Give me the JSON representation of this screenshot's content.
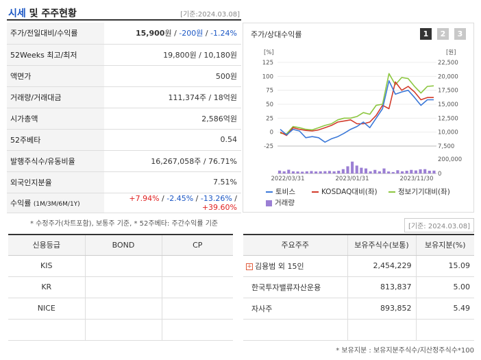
{
  "header": {
    "title_main": "시세",
    "title_rest": " 및 주주현황",
    "date": "[기준:2024.03.08]"
  },
  "quote": {
    "rows": [
      {
        "label": "주가/전일대비/수익률",
        "price": "15,900",
        "unit": "원",
        "sep": " / ",
        "change": "-200원",
        "sep2": " / ",
        "rate": "-1.24%"
      },
      {
        "label": "52Weeks 최고/최저",
        "value": "19,800원 / 10,180원"
      },
      {
        "label": "액면가",
        "value": "500원"
      },
      {
        "label": "거래량/거래대금",
        "value": "111,374주 / 18억원"
      },
      {
        "label": "시가총액",
        "value": "2,586억원"
      },
      {
        "label": "52주베타",
        "value": "0.54"
      },
      {
        "label": "발행주식수/유동비율",
        "value": "16,267,058주 / 76.71%"
      },
      {
        "label": "외국인지분율",
        "value": "7.51%"
      }
    ],
    "returns_label": "수익률",
    "returns_periods": "(1M/3M/6M/1Y)",
    "returns": [
      "+7.94%",
      "-2.45%",
      "-13.26%",
      "+39.60%"
    ]
  },
  "note1": "* 수정주가(차트포함), 보통주 기준, * 52주베타: 주간수익률 기준",
  "chart": {
    "title": "주가/상대수익률",
    "tabs": [
      "1",
      "2",
      "3"
    ],
    "left_unit": "[%]",
    "right_unit": "[원]",
    "legend": [
      "토비스",
      "KOSDAQ대비(좌)",
      "정보기기대비(좌)",
      "거래량"
    ]
  },
  "chart_data": {
    "type": "line",
    "x_ticks": [
      "2022/03/31",
      "2023/01/31",
      "2023/11/30"
    ],
    "y_left_ticks": [
      "125",
      "100",
      "75",
      "50",
      "25",
      "0",
      "-25"
    ],
    "y_right_ticks": [
      "22,500",
      "20,000",
      "17,500",
      "15,000",
      "12,500",
      "10,000",
      "7,500"
    ],
    "volume_ticks": [
      "200,000",
      "0"
    ],
    "ylim_left": [
      -25,
      125
    ],
    "ylim_right": [
      7500,
      22500
    ],
    "volume_max": 200000,
    "series": [
      {
        "name": "토비스",
        "color": "#3a78d8",
        "values": [
          5,
          -5,
          5,
          2,
          -10,
          -8,
          -10,
          -18,
          -12,
          -8,
          -2,
          5,
          10,
          18,
          8,
          25,
          42,
          92,
          68,
          72,
          75,
          62,
          48,
          58,
          58
        ]
      },
      {
        "name": "KOSDAQ대비(좌)",
        "color": "#d23a2a",
        "values": [
          0,
          -6,
          8,
          5,
          3,
          2,
          4,
          8,
          12,
          18,
          20,
          22,
          15,
          15,
          18,
          30,
          48,
          42,
          90,
          75,
          82,
          72,
          58,
          62,
          62
        ]
      },
      {
        "name": "정보기기대비(좌)",
        "color": "#8cc63f",
        "values": [
          -2,
          -3,
          10,
          8,
          5,
          4,
          8,
          12,
          15,
          22,
          25,
          25,
          28,
          35,
          32,
          48,
          50,
          105,
          85,
          98,
          96,
          82,
          70,
          82,
          83
        ]
      }
    ],
    "volume": [
      40000,
      30000,
      52000,
      30000,
      28000,
      25000,
      30000,
      34000,
      28000,
      30000,
      32000,
      35000,
      30000,
      38000,
      60000,
      100000,
      165000,
      110000,
      80000,
      70000,
      30000,
      50000,
      30000,
      70000,
      28000,
      20000,
      45000,
      30000,
      38000,
      50000,
      42000,
      58000,
      60000,
      38000,
      40000
    ]
  },
  "date_chip": "[기준: 2024.03.08]",
  "credit": {
    "headers": [
      "신용등급",
      "BOND",
      "CP"
    ],
    "rows": [
      [
        "KIS",
        "",
        ""
      ],
      [
        "KR",
        "",
        ""
      ],
      [
        "NICE",
        "",
        ""
      ],
      [
        "",
        "",
        ""
      ]
    ]
  },
  "holders": {
    "headers": [
      "주요주주",
      "보유주식수(보통)",
      "보유지분(%)"
    ],
    "rows": [
      {
        "name": "김용범 외 15인",
        "shares": "2,454,229",
        "pct": "15.09",
        "expand": true
      },
      {
        "name": "한국투자밸류자산운용",
        "shares": "813,837",
        "pct": "5.00",
        "expand": false
      },
      {
        "name": "자사주",
        "shares": "893,852",
        "pct": "5.49",
        "expand": false
      },
      {
        "name": "",
        "shares": "",
        "pct": "",
        "expand": false
      }
    ]
  },
  "note2": "* 보유지분 : 보유지분주식수/지산정주식수*100"
}
